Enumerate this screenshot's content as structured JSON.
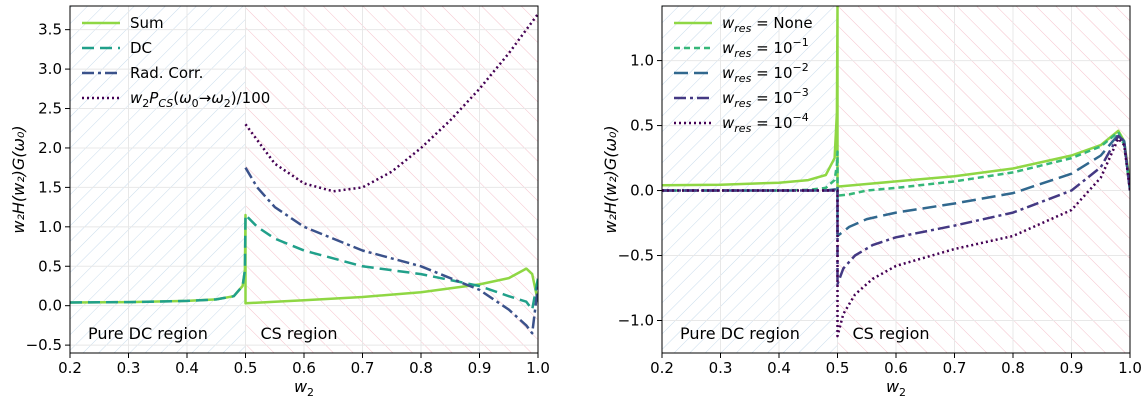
{
  "chart_data": [
    {
      "type": "line",
      "xlim": [
        0.2,
        1.0
      ],
      "ylim": [
        -0.6,
        3.8
      ],
      "xticks": [
        "0.2",
        "0.3",
        "0.4",
        "0.5",
        "0.6",
        "0.7",
        "0.8",
        "0.9",
        "1.0"
      ],
      "xtick_values": [
        0.2,
        0.3,
        0.4,
        0.5,
        0.6,
        0.7,
        0.8,
        0.9,
        1.0
      ],
      "yticks": [
        "−0.5",
        "0.0",
        "0.5",
        "1.0",
        "1.5",
        "2.0",
        "2.5",
        "3.0",
        "3.5"
      ],
      "ytick_values": [
        -0.5,
        0,
        0.5,
        1.0,
        1.5,
        2.0,
        2.5,
        3.0,
        3.5
      ],
      "xlabel": {
        "base": "w",
        "sub": "2"
      },
      "ylabel": "w₂H(w₂)G(ω₀)",
      "grid": true,
      "legend_position": "top-left",
      "regions": {
        "left_label": "Pure DC region",
        "right_label": "CS region",
        "boundary": 0.5,
        "left_color": "#d6e4f0",
        "right_color": "#f7c7cf"
      },
      "series": [
        {
          "name": "Sum",
          "legend": [
            {
              "t": "Sum"
            }
          ],
          "color": "#8fd744",
          "dash": "",
          "x": [
            0.2,
            0.3,
            0.4,
            0.45,
            0.48,
            0.495,
            0.499,
            0.5,
            0.5,
            0.55,
            0.6,
            0.7,
            0.8,
            0.9,
            0.95,
            0.98,
            0.99,
            1.0
          ],
          "y": [
            0.04,
            0.045,
            0.06,
            0.08,
            0.12,
            0.25,
            0.45,
            1.15,
            0.03,
            0.05,
            0.07,
            0.11,
            0.17,
            0.27,
            0.35,
            0.47,
            0.4,
            0.05
          ]
        },
        {
          "name": "DC",
          "legend": [
            {
              "t": "DC"
            }
          ],
          "color": "#21a08a",
          "dash": "12,6",
          "x": [
            0.2,
            0.3,
            0.4,
            0.45,
            0.48,
            0.495,
            0.499,
            0.5,
            0.52,
            0.55,
            0.6,
            0.7,
            0.8,
            0.9,
            0.95,
            0.98,
            0.99,
            1.0
          ],
          "y": [
            0.04,
            0.045,
            0.06,
            0.08,
            0.12,
            0.25,
            0.45,
            1.15,
            1.0,
            0.85,
            0.7,
            0.5,
            0.4,
            0.25,
            0.12,
            0.05,
            -0.05,
            0.35
          ]
        },
        {
          "name": "Rad. Corr.",
          "legend": [
            {
              "t": "Rad. Corr."
            }
          ],
          "color": "#3b528b",
          "dash": "12,4,3,4",
          "x": [
            0.5,
            0.52,
            0.55,
            0.6,
            0.7,
            0.8,
            0.9,
            0.95,
            0.98,
            0.99,
            1.0
          ],
          "y": [
            1.75,
            1.5,
            1.25,
            1.0,
            0.7,
            0.5,
            0.2,
            -0.05,
            -0.25,
            -0.35,
            0.25
          ]
        },
        {
          "name": "w2 P_CS(ω0→ω2)/100",
          "legend": [
            {
              "t": "w",
              "i": true
            },
            {
              "t": "2",
              "sub": true
            },
            {
              "t": "P",
              "i": true
            },
            {
              "t": "CS",
              "sub": true,
              "i": true
            },
            {
              "t": "("
            },
            {
              "t": "ω",
              "i": true
            },
            {
              "t": "0",
              "sub": true
            },
            {
              "t": "→"
            },
            {
              "t": "ω",
              "i": true
            },
            {
              "t": "2",
              "sub": true
            },
            {
              "t": ")/100"
            }
          ],
          "color": "#440154",
          "dash": "2,3",
          "x": [
            0.5,
            0.55,
            0.6,
            0.65,
            0.7,
            0.75,
            0.8,
            0.85,
            0.9,
            0.95,
            1.0
          ],
          "y": [
            2.3,
            1.8,
            1.55,
            1.45,
            1.5,
            1.7,
            2.0,
            2.35,
            2.75,
            3.2,
            3.7
          ]
        }
      ]
    },
    {
      "type": "line",
      "xlim": [
        0.2,
        1.0
      ],
      "ylim": [
        -1.25,
        1.42
      ],
      "xticks": [
        "0.2",
        "0.3",
        "0.4",
        "0.5",
        "0.6",
        "0.7",
        "0.8",
        "0.9",
        "1.0"
      ],
      "xtick_values": [
        0.2,
        0.3,
        0.4,
        0.5,
        0.6,
        0.7,
        0.8,
        0.9,
        1.0
      ],
      "yticks": [
        "−1.0",
        "−0.5",
        "0.0",
        "0.5",
        "1.0"
      ],
      "ytick_values": [
        -1.0,
        -0.5,
        0,
        0.5,
        1.0
      ],
      "xlabel": {
        "base": "w",
        "sub": "2"
      },
      "ylabel": "w₂H(w₂)G(ω₀)",
      "grid": true,
      "legend_position": "top-left",
      "regions": {
        "left_label": "Pure DC region",
        "right_label": "CS region",
        "boundary": 0.5,
        "left_color": "#d6e4f0",
        "right_color": "#f7c7cf"
      },
      "series": [
        {
          "name": "w_res = None",
          "legend": [
            {
              "t": "w",
              "i": true
            },
            {
              "t": "res",
              "sub": true,
              "i": true
            },
            {
              "t": " = None"
            }
          ],
          "color": "#8fd744",
          "dash": "",
          "x": [
            0.2,
            0.3,
            0.4,
            0.45,
            0.48,
            0.495,
            0.499,
            0.5,
            0.5,
            0.55,
            0.6,
            0.7,
            0.8,
            0.9,
            0.95,
            0.98,
            0.99,
            1.0
          ],
          "y": [
            0.04,
            0.045,
            0.06,
            0.08,
            0.12,
            0.25,
            0.6,
            1.42,
            0.03,
            0.05,
            0.07,
            0.11,
            0.17,
            0.27,
            0.35,
            0.46,
            0.38,
            0.05
          ]
        },
        {
          "name": "w_res = 10^-1",
          "legend": [
            {
              "t": "w",
              "i": true
            },
            {
              "t": "res",
              "sub": true,
              "i": true
            },
            {
              "t": " = 10"
            },
            {
              "t": "−1",
              "sup": true
            }
          ],
          "color": "#35b779",
          "dash": "6,4",
          "x": [
            0.2,
            0.3,
            0.4,
            0.45,
            0.48,
            0.495,
            0.499,
            0.5,
            0.5,
            0.52,
            0.55,
            0.6,
            0.7,
            0.8,
            0.9,
            0.95,
            0.98,
            0.99,
            1.0
          ],
          "y": [
            0.0,
            0.0,
            0.0,
            0.005,
            0.02,
            0.08,
            0.2,
            0.3,
            -0.04,
            -0.03,
            0.0,
            0.02,
            0.07,
            0.14,
            0.25,
            0.34,
            0.45,
            0.35,
            0.0
          ]
        },
        {
          "name": "w_res = 10^-2",
          "legend": [
            {
              "t": "w",
              "i": true
            },
            {
              "t": "res",
              "sub": true,
              "i": true
            },
            {
              "t": " = 10"
            },
            {
              "t": "−2",
              "sup": true
            }
          ],
          "color": "#31688e",
          "dash": "14,6",
          "x": [
            0.2,
            0.3,
            0.4,
            0.48,
            0.498,
            0.5,
            0.5,
            0.52,
            0.55,
            0.6,
            0.7,
            0.8,
            0.9,
            0.95,
            0.98,
            0.99,
            1.0
          ],
          "y": [
            0.0,
            0.0,
            0.0,
            0.0,
            0.01,
            0.04,
            -0.35,
            -0.28,
            -0.22,
            -0.17,
            -0.1,
            -0.02,
            0.13,
            0.27,
            0.43,
            0.38,
            0.0
          ]
        },
        {
          "name": "w_res = 10^-3",
          "legend": [
            {
              "t": "w",
              "i": true
            },
            {
              "t": "res",
              "sub": true,
              "i": true
            },
            {
              "t": " = 10"
            },
            {
              "t": "−3",
              "sup": true
            }
          ],
          "color": "#443983",
          "dash": "12,4,3,4",
          "x": [
            0.2,
            0.3,
            0.4,
            0.48,
            0.498,
            0.5,
            0.5,
            0.51,
            0.53,
            0.56,
            0.6,
            0.7,
            0.8,
            0.9,
            0.95,
            0.98,
            0.99,
            1.0
          ],
          "y": [
            0.0,
            0.0,
            0.0,
            0.0,
            0.0,
            0.0,
            -0.72,
            -0.6,
            -0.5,
            -0.42,
            -0.36,
            -0.27,
            -0.17,
            0.0,
            0.18,
            0.42,
            0.38,
            0.0
          ]
        },
        {
          "name": "w_res = 10^-4",
          "legend": [
            {
              "t": "w",
              "i": true
            },
            {
              "t": "res",
              "sub": true,
              "i": true
            },
            {
              "t": " = 10"
            },
            {
              "t": "−4",
              "sup": true
            }
          ],
          "color": "#440154",
          "dash": "2,3",
          "x": [
            0.2,
            0.3,
            0.4,
            0.48,
            0.498,
            0.5,
            0.5,
            0.51,
            0.53,
            0.56,
            0.6,
            0.7,
            0.8,
            0.9,
            0.95,
            0.98,
            0.99,
            1.0
          ],
          "y": [
            0.0,
            0.0,
            0.0,
            0.0,
            0.0,
            0.0,
            -1.12,
            -0.95,
            -0.8,
            -0.68,
            -0.58,
            -0.45,
            -0.35,
            -0.15,
            0.1,
            0.4,
            0.35,
            0.0
          ]
        }
      ]
    }
  ]
}
